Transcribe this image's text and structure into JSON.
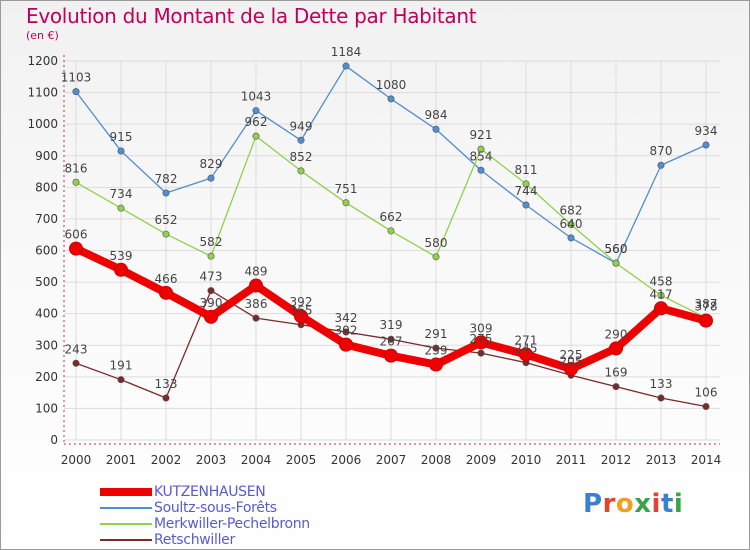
{
  "title": "Evolution du Montant de la Dette par Habitant",
  "unit_label": "(en €)",
  "logo": {
    "text": "Proxiti",
    "letters": [
      "P",
      "r",
      "o",
      "x",
      "i",
      "t",
      "i"
    ],
    "colors": [
      "#3b7fd0",
      "#e0452f",
      "#f0a020",
      "#3aa44a",
      "#e0452f",
      "#3b7fd0",
      "#3aa44a"
    ]
  },
  "chart_data": {
    "type": "line",
    "x": [
      "2000",
      "2001",
      "2002",
      "2003",
      "2004",
      "2005",
      "2006",
      "2007",
      "2008",
      "2009",
      "2010",
      "2011",
      "2012",
      "2013",
      "2014"
    ],
    "ylim": [
      0,
      1200
    ],
    "yticks": [
      "0",
      "100",
      "200",
      "300",
      "400",
      "500",
      "600",
      "700",
      "800",
      "900",
      "1000",
      "1100",
      "1200"
    ],
    "grid": true,
    "legend_position": "bottom-left",
    "series": [
      {
        "name": "Soultz-sous-Forêts",
        "color": "#4f8ed0",
        "values": [
          1103,
          915,
          782,
          829,
          1043,
          949,
          1184,
          1080,
          984,
          854,
          744,
          640,
          560,
          870,
          934
        ]
      },
      {
        "name": "Merkwiller-Pechelbronn",
        "color": "#8ed14a",
        "values": [
          816,
          734,
          652,
          582,
          962,
          852,
          751,
          662,
          580,
          921,
          811,
          682,
          560,
          458,
          387
        ]
      },
      {
        "name": "Retschwiller",
        "color": "#7a2a2a",
        "values": [
          243,
          191,
          133,
          473,
          386,
          365,
          342,
          319,
          291,
          275,
          245,
          205,
          169,
          133,
          106
        ]
      },
      {
        "name": "KUTZENHAUSEN",
        "color": "#ee0000",
        "values": [
          606,
          539,
          466,
          390,
          489,
          392,
          302,
          267,
          239,
          309,
          271,
          225,
          290,
          417,
          378
        ]
      }
    ],
    "data_labels": [
      {
        "series": 0,
        "values": [
          "1103",
          "915",
          "782",
          "829",
          "1043",
          "949",
          "1184",
          "1080",
          "984",
          "854",
          "744",
          "640",
          "560",
          "870",
          "934"
        ]
      },
      {
        "series": 1,
        "values": [
          "816",
          "734",
          "652",
          "582",
          "962",
          "852",
          "751",
          "662",
          "580",
          "921",
          "811",
          "682",
          "560",
          "458",
          "387"
        ]
      },
      {
        "series": 2,
        "values": [
          "243",
          "191",
          "133",
          "473",
          "386",
          "365",
          "342",
          "319",
          "291",
          "275",
          "245",
          "205",
          "169",
          "133",
          "106"
        ]
      },
      {
        "series": 3,
        "values": [
          "606",
          "539",
          "466",
          "390",
          "489",
          "392",
          "302",
          "267",
          "239",
          "309",
          "271",
          "225",
          "290",
          "417",
          "378"
        ]
      }
    ]
  }
}
